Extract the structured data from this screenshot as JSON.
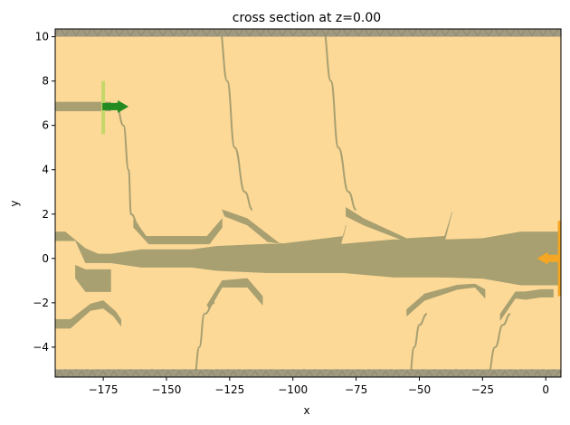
{
  "chart_data": {
    "type": "other",
    "title": "cross section at z=0.00",
    "xlabel": "x",
    "ylabel": "y",
    "xlim": [
      -194,
      6
    ],
    "ylim": [
      -5.35,
      10.35
    ],
    "xticks": [
      -175,
      -150,
      -125,
      -100,
      -75,
      -50,
      -25,
      0
    ],
    "xtick_labels": [
      "−175",
      "−150",
      "−125",
      "−100",
      "−75",
      "−50",
      "−25",
      "0"
    ],
    "yticks": [
      -4,
      -2,
      0,
      2,
      4,
      6,
      8,
      10
    ],
    "ytick_labels": [
      "−4",
      "−2",
      "0",
      "2",
      "4",
      "6",
      "8",
      "10"
    ],
    "grid": false,
    "colors": {
      "background": "#fdd998",
      "structure": "#a8a070",
      "pml": "#a09a80",
      "source": "#c6d86a",
      "source_arrow": "#228b22",
      "monitor_arrow": "#f5a623"
    },
    "boundaries": {
      "pml_bottom": [
        -5.35,
        -5.0
      ],
      "pml_top": [
        10.0,
        10.35
      ]
    },
    "source": {
      "x": -175,
      "y_range": [
        5.6,
        8.0
      ],
      "direction": "+x"
    },
    "monitor": {
      "x": 5.5,
      "y_range": [
        -1.7,
        1.7
      ],
      "direction": "-x"
    },
    "polygons": [
      {
        "name": "input-waveguide",
        "points": [
          [
            -194,
            7.05
          ],
          [
            -172,
            7.05
          ],
          [
            -172,
            6.65
          ],
          [
            -194,
            6.65
          ]
        ]
      },
      {
        "name": "main-waveguide",
        "points": [
          [
            -194,
            1.2
          ],
          [
            -190,
            1.2
          ],
          [
            -182,
            0.45
          ],
          [
            -177,
            0.2
          ],
          [
            -172,
            0.2
          ],
          [
            -160,
            0.4
          ],
          [
            -140,
            0.4
          ],
          [
            -130,
            0.55
          ],
          [
            -110,
            0.65
          ],
          [
            -80,
            0.65
          ],
          [
            -60,
            0.85
          ],
          [
            -40,
            0.85
          ],
          [
            -25,
            0.9
          ],
          [
            -10,
            1.2
          ],
          [
            6,
            1.2
          ],
          [
            6,
            -1.2
          ],
          [
            -10,
            -1.2
          ],
          [
            -25,
            -0.9
          ],
          [
            -40,
            -0.85
          ],
          [
            -60,
            -0.85
          ],
          [
            -80,
            -0.65
          ],
          [
            -110,
            -0.65
          ],
          [
            -130,
            -0.55
          ],
          [
            -140,
            -0.4
          ],
          [
            -160,
            -0.4
          ],
          [
            -172,
            -0.2
          ],
          [
            -177,
            -0.2
          ],
          [
            -182,
            -0.2
          ],
          [
            -186,
            0.8
          ],
          [
            -194,
            0.8
          ]
        ]
      },
      {
        "name": "lower-left-block",
        "points": [
          [
            -186,
            -0.3
          ],
          [
            -182,
            -0.5
          ],
          [
            -172,
            -0.5
          ],
          [
            -172,
            -1.5
          ],
          [
            -182,
            -1.5
          ],
          [
            -186,
            -0.9
          ]
        ]
      },
      {
        "name": "lower-left-arm",
        "points": [
          [
            -194,
            -2.75
          ],
          [
            -188,
            -2.75
          ],
          [
            -180,
            -2.05
          ],
          [
            -175,
            -1.9
          ],
          [
            -170,
            -2.4
          ],
          [
            -168,
            -2.75
          ],
          [
            -168,
            -3.05
          ],
          [
            -171,
            -2.6
          ],
          [
            -175,
            -2.25
          ],
          [
            -180,
            -2.35
          ],
          [
            -188,
            -3.15
          ],
          [
            -194,
            -3.15
          ]
        ]
      },
      {
        "name": "upper-arm-1",
        "points": [
          [
            -163,
            1.8
          ],
          [
            -158,
            1.0
          ],
          [
            -145,
            1.0
          ],
          [
            -134,
            1.0
          ],
          [
            -128,
            1.8
          ],
          [
            -128,
            1.4
          ],
          [
            -133,
            0.65
          ],
          [
            -145,
            0.65
          ],
          [
            -157,
            0.65
          ],
          [
            -163,
            1.4
          ]
        ]
      },
      {
        "name": "upper-arm-2",
        "points": [
          [
            -128,
            2.2
          ],
          [
            -118,
            1.8
          ],
          [
            -105,
            0.65
          ],
          [
            -80,
            1.0
          ],
          [
            -79,
            1.5
          ],
          [
            -81,
            0.65
          ],
          [
            -103,
            0.65
          ],
          [
            -110,
            0.75
          ],
          [
            -118,
            1.5
          ],
          [
            -127,
            1.9
          ]
        ]
      },
      {
        "name": "upper-arm-3",
        "points": [
          [
            -79,
            2.3
          ],
          [
            -72,
            1.8
          ],
          [
            -55,
            0.9
          ],
          [
            -40,
            1.0
          ],
          [
            -37,
            2.1
          ],
          [
            -40,
            0.75
          ],
          [
            -55,
            0.75
          ],
          [
            -72,
            1.5
          ],
          [
            -79,
            1.9
          ]
        ]
      },
      {
        "name": "lower-arm-1",
        "points": [
          [
            -134,
            -2.1
          ],
          [
            -128,
            -1.0
          ],
          [
            -118,
            -0.9
          ],
          [
            -112,
            -1.7
          ],
          [
            -112,
            -2.1
          ],
          [
            -118,
            -1.3
          ],
          [
            -128,
            -1.3
          ],
          [
            -133,
            -2.3
          ]
        ]
      },
      {
        "name": "lower-arm-2",
        "points": [
          [
            -55,
            -2.6
          ],
          [
            -48,
            -1.9
          ],
          [
            -35,
            -1.4
          ],
          [
            -28,
            -1.3
          ],
          [
            -24,
            -1.8
          ],
          [
            -24,
            -1.4
          ],
          [
            -28,
            -1.15
          ],
          [
            -35,
            -1.2
          ],
          [
            -48,
            -1.6
          ],
          [
            -55,
            -2.3
          ]
        ]
      },
      {
        "name": "lower-arm-3",
        "points": [
          [
            -18,
            -2.5
          ],
          [
            -12,
            -1.5
          ],
          [
            -8,
            -1.5
          ],
          [
            -2,
            -1.4
          ],
          [
            3,
            -1.4
          ],
          [
            3,
            -1.75
          ],
          [
            -2,
            -1.75
          ],
          [
            -8,
            -1.85
          ],
          [
            -12,
            -1.8
          ],
          [
            -18,
            -2.8
          ]
        ]
      }
    ],
    "curves": [
      {
        "name": "routing-curve-1",
        "points": [
          [
            -170,
            7.0
          ],
          [
            -167,
            6.0
          ],
          [
            -165,
            4.0
          ],
          [
            -164,
            2.0
          ],
          [
            -161,
            1.5
          ]
        ]
      },
      {
        "name": "routing-curve-2",
        "points": [
          [
            -129,
            10.35
          ],
          [
            -126,
            8.0
          ],
          [
            -123,
            5.0
          ],
          [
            -119,
            3.0
          ],
          [
            -116,
            2.2
          ]
        ]
      },
      {
        "name": "routing-curve-3",
        "points": [
          [
            -88,
            10.35
          ],
          [
            -85,
            8.0
          ],
          [
            -82,
            5.0
          ],
          [
            -78,
            3.0
          ],
          [
            -75,
            2.2
          ]
        ]
      },
      {
        "name": "routing-curve-4",
        "points": [
          [
            -139,
            -5.35
          ],
          [
            -137,
            -4.0
          ],
          [
            -135,
            -2.5
          ],
          [
            -131,
            -2.0
          ]
        ]
      },
      {
        "name": "routing-curve-5",
        "points": [
          [
            -54,
            -5.35
          ],
          [
            -52,
            -4.0
          ],
          [
            -50,
            -3.0
          ],
          [
            -47,
            -2.5
          ]
        ]
      },
      {
        "name": "routing-curve-6",
        "points": [
          [
            -23,
            -5.35
          ],
          [
            -20,
            -4.0
          ],
          [
            -17,
            -3.0
          ],
          [
            -14,
            -2.5
          ]
        ]
      }
    ]
  }
}
